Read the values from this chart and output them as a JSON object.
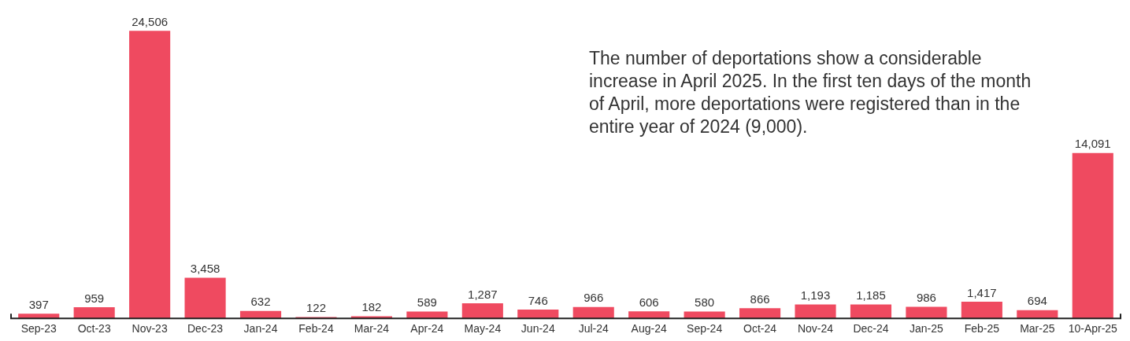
{
  "chart_data": {
    "type": "bar",
    "categories": [
      "Sep-23",
      "Oct-23",
      "Nov-23",
      "Dec-23",
      "Jan-24",
      "Feb-24",
      "Mar-24",
      "Apr-24",
      "May-24",
      "Jun-24",
      "Jul-24",
      "Aug-24",
      "Sep-24",
      "Oct-24",
      "Nov-24",
      "Dec-24",
      "Jan-25",
      "Feb-25",
      "Mar-25",
      "10-Apr-25"
    ],
    "values": [
      397,
      959,
      24506,
      3458,
      632,
      122,
      182,
      589,
      1287,
      746,
      966,
      606,
      580,
      866,
      1193,
      1185,
      986,
      1417,
      694,
      14091
    ],
    "color": "#ef4a60",
    "value_labels": [
      "397",
      "959",
      "24,506",
      "3,458",
      "632",
      "122",
      "182",
      "589",
      "1,287",
      "746",
      "966",
      "606",
      "580",
      "866",
      "1,193",
      "1,185",
      "986",
      "1,417",
      "694",
      "14,091"
    ],
    "grid": false,
    "legend": false,
    "tick_labels": "x",
    "annotations": [
      "The number of deportations show a considerable increase in April 2025. In the first ten days of the month of April, more deportations were registered than in the entire year of 2024 (9,000)."
    ]
  }
}
